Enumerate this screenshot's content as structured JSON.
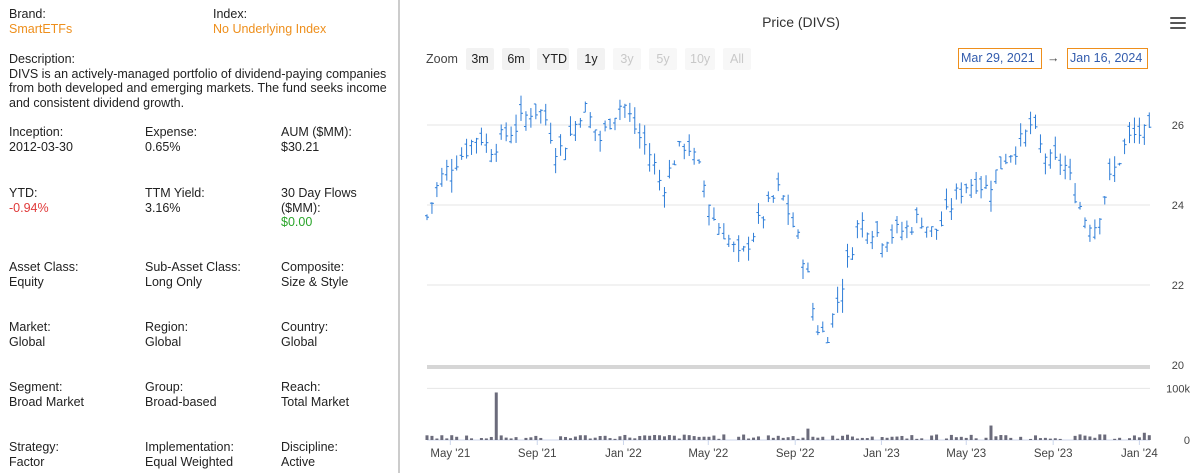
{
  "info": {
    "brand": {
      "label": "Brand:",
      "value": "SmartETFs"
    },
    "index": {
      "label": "Index:",
      "value": "No Underlying Index"
    },
    "description": {
      "label": "Description:",
      "value": "DIVS is an actively-managed portfolio of dividend-paying companies from both developed and emerging markets. The fund seeks income and consistent dividend growth."
    },
    "inception": {
      "label": "Inception:",
      "value": "2012-03-30"
    },
    "expense": {
      "label": "Expense:",
      "value": "0.65%"
    },
    "aum": {
      "label": "AUM ($MM):",
      "value": "$30.21"
    },
    "ytd": {
      "label": "YTD:",
      "value": "-0.94%"
    },
    "ttm_yield": {
      "label": "TTM Yield:",
      "value": "3.16%"
    },
    "flows": {
      "label": "30 Day Flows ($MM):",
      "value": "$0.00"
    },
    "asset_class": {
      "label": "Asset Class:",
      "value": "Equity"
    },
    "sub_asset_class": {
      "label": "Sub-Asset Class:",
      "value": "Long Only"
    },
    "composite": {
      "label": "Composite:",
      "value": "Size & Style"
    },
    "market": {
      "label": "Market:",
      "value": "Global"
    },
    "region": {
      "label": "Region:",
      "value": "Global"
    },
    "country": {
      "label": "Country:",
      "value": "Global"
    },
    "segment": {
      "label": "Segment:",
      "value": "Broad Market"
    },
    "group": {
      "label": "Group:",
      "value": "Broad-based"
    },
    "reach": {
      "label": "Reach:",
      "value": "Total Market"
    },
    "strategy": {
      "label": "Strategy:",
      "value": "Factor"
    },
    "implementation": {
      "label": "Implementation:",
      "value": "Equal Weighted"
    },
    "discipline": {
      "label": "Discipline:",
      "value": "Active"
    }
  },
  "colors": {
    "accent": "#ee8f1c",
    "negative": "#e03a3a",
    "positive": "#2aa52a",
    "price_line": "#2f7ed8",
    "volume_bar": "#6b6b7b"
  },
  "toolbar": {
    "zoom_label": "Zoom",
    "zoom_buttons": [
      {
        "label": "3m",
        "enabled": true
      },
      {
        "label": "6m",
        "enabled": true
      },
      {
        "label": "YTD",
        "enabled": true
      },
      {
        "label": "1y",
        "enabled": true
      },
      {
        "label": "3y",
        "enabled": false
      },
      {
        "label": "5y",
        "enabled": false
      },
      {
        "label": "10y",
        "enabled": false
      },
      {
        "label": "All",
        "enabled": false
      }
    ],
    "from_date": "Mar 29, 2021",
    "arrow": "→",
    "to_date": "Jan 16, 2024",
    "menu_icon": "hamburger-menu-icon"
  },
  "chart_data": {
    "type": "ohlc",
    "title": "Price (DIVS)",
    "x_ticks": [
      "May '21",
      "Sep '21",
      "Jan '22",
      "May '22",
      "Sep '22",
      "Jan '23",
      "May '23",
      "Sep '23",
      "Jan '24"
    ],
    "price_axis": {
      "ticks": [
        "20",
        "22",
        "24",
        "26"
      ],
      "ylim": [
        20,
        27
      ]
    },
    "volume_axis": {
      "ticks": [
        "0",
        "100k"
      ],
      "ylim": [
        0,
        120000
      ]
    },
    "price_series": [
      {
        "x": "2021-03-29",
        "y": 23.7
      },
      {
        "x": "2021-04-15",
        "y": 24.6
      },
      {
        "x": "2021-05-01",
        "y": 25.0
      },
      {
        "x": "2021-05-20",
        "y": 25.3
      },
      {
        "x": "2021-06-10",
        "y": 25.8
      },
      {
        "x": "2021-06-25",
        "y": 25.4
      },
      {
        "x": "2021-07-15",
        "y": 25.7
      },
      {
        "x": "2021-08-05",
        "y": 26.0
      },
      {
        "x": "2021-08-25",
        "y": 26.4
      },
      {
        "x": "2021-09-10",
        "y": 26.3
      },
      {
        "x": "2021-09-30",
        "y": 25.3
      },
      {
        "x": "2021-10-20",
        "y": 25.8
      },
      {
        "x": "2021-11-05",
        "y": 26.5
      },
      {
        "x": "2021-11-30",
        "y": 25.6
      },
      {
        "x": "2021-12-15",
        "y": 26.2
      },
      {
        "x": "2021-12-31",
        "y": 26.6
      },
      {
        "x": "2022-01-20",
        "y": 25.8
      },
      {
        "x": "2022-02-10",
        "y": 25.2
      },
      {
        "x": "2022-02-25",
        "y": 24.4
      },
      {
        "x": "2022-03-15",
        "y": 25.2
      },
      {
        "x": "2022-03-31",
        "y": 25.6
      },
      {
        "x": "2022-04-20",
        "y": 24.8
      },
      {
        "x": "2022-05-10",
        "y": 23.6
      },
      {
        "x": "2022-05-25",
        "y": 23.3
      },
      {
        "x": "2022-06-15",
        "y": 22.6
      },
      {
        "x": "2022-06-30",
        "y": 23.2
      },
      {
        "x": "2022-07-20",
        "y": 23.8
      },
      {
        "x": "2022-08-10",
        "y": 24.4
      },
      {
        "x": "2022-08-25",
        "y": 23.7
      },
      {
        "x": "2022-09-15",
        "y": 22.6
      },
      {
        "x": "2022-09-30",
        "y": 21.0
      },
      {
        "x": "2022-10-15",
        "y": 20.7
      },
      {
        "x": "2022-10-31",
        "y": 21.6
      },
      {
        "x": "2022-11-15",
        "y": 22.6
      },
      {
        "x": "2022-11-30",
        "y": 23.6
      },
      {
        "x": "2022-12-15",
        "y": 23.5
      },
      {
        "x": "2022-12-31",
        "y": 23.2
      },
      {
        "x": "2023-01-20",
        "y": 23.3
      },
      {
        "x": "2023-02-05",
        "y": 23.4
      },
      {
        "x": "2023-02-25",
        "y": 23.7
      },
      {
        "x": "2023-03-15",
        "y": 23.3
      },
      {
        "x": "2023-03-31",
        "y": 23.6
      },
      {
        "x": "2023-04-15",
        "y": 24.2
      },
      {
        "x": "2023-04-30",
        "y": 24.5
      },
      {
        "x": "2023-05-15",
        "y": 24.6
      },
      {
        "x": "2023-05-31",
        "y": 24.4
      },
      {
        "x": "2023-06-15",
        "y": 24.9
      },
      {
        "x": "2023-06-30",
        "y": 25.3
      },
      {
        "x": "2023-07-20",
        "y": 25.6
      },
      {
        "x": "2023-07-31",
        "y": 26.0
      },
      {
        "x": "2023-08-15",
        "y": 25.4
      },
      {
        "x": "2023-08-31",
        "y": 25.0
      },
      {
        "x": "2023-09-15",
        "y": 25.1
      },
      {
        "x": "2023-09-30",
        "y": 24.4
      },
      {
        "x": "2023-10-15",
        "y": 23.7
      },
      {
        "x": "2023-10-31",
        "y": 23.5
      },
      {
        "x": "2023-11-15",
        "y": 24.4
      },
      {
        "x": "2023-11-30",
        "y": 25.0
      },
      {
        "x": "2023-12-15",
        "y": 25.6
      },
      {
        "x": "2023-12-31",
        "y": 25.8
      },
      {
        "x": "2024-01-16",
        "y": 25.7
      }
    ],
    "volume_series": [
      {
        "x": "2021-07-05",
        "y": 92000
      },
      {
        "x": "2022-09-20",
        "y": 22000
      },
      {
        "x": "2023-05-20",
        "y": 15000
      },
      {
        "x": "2023-06-05",
        "y": 28000
      },
      {
        "x": "2023-09-25",
        "y": 20000
      },
      {
        "x": "2024-01-10",
        "y": 14000
      }
    ]
  }
}
